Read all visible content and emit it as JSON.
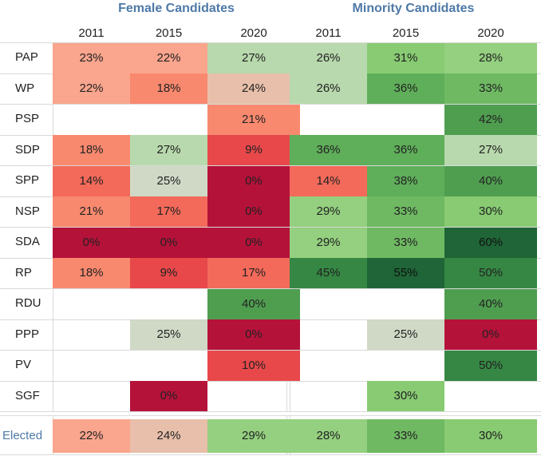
{
  "chart_data": {
    "type": "heatmap",
    "panels": [
      {
        "title": "Female Candidates",
        "years": [
          "2011",
          "2015",
          "2020"
        ],
        "rows": [
          {
            "party": "PAP",
            "values": [
              23,
              22,
              27
            ]
          },
          {
            "party": "WP",
            "values": [
              22,
              18,
              24
            ]
          },
          {
            "party": "PSP",
            "values": [
              null,
              null,
              21
            ]
          },
          {
            "party": "SDP",
            "values": [
              18,
              27,
              9
            ]
          },
          {
            "party": "SPP",
            "values": [
              14,
              25,
              0
            ]
          },
          {
            "party": "NSP",
            "values": [
              21,
              17,
              0
            ]
          },
          {
            "party": "SDA",
            "values": [
              0,
              0,
              0
            ]
          },
          {
            "party": "RP",
            "values": [
              18,
              9,
              17
            ]
          },
          {
            "party": "RDU",
            "values": [
              null,
              null,
              40
            ]
          },
          {
            "party": "PPP",
            "values": [
              null,
              25,
              0
            ]
          },
          {
            "party": "PV",
            "values": [
              null,
              null,
              10
            ]
          },
          {
            "party": "SGF",
            "values": [
              null,
              0,
              null
            ]
          }
        ],
        "elected": {
          "label": "Elected",
          "values": [
            22,
            24,
            29
          ]
        }
      },
      {
        "title": "Minority Candidates",
        "years": [
          "2011",
          "2015",
          "2020"
        ],
        "rows": [
          {
            "party": "PAP",
            "values": [
              26,
              31,
              28
            ]
          },
          {
            "party": "WP",
            "values": [
              26,
              36,
              33
            ]
          },
          {
            "party": "PSP",
            "values": [
              null,
              null,
              42
            ]
          },
          {
            "party": "SDP",
            "values": [
              36,
              36,
              27
            ]
          },
          {
            "party": "SPP",
            "values": [
              14,
              38,
              40
            ]
          },
          {
            "party": "NSP",
            "values": [
              29,
              33,
              30
            ]
          },
          {
            "party": "SDA",
            "values": [
              29,
              33,
              60
            ]
          },
          {
            "party": "RP",
            "values": [
              45,
              55,
              50
            ]
          },
          {
            "party": "RDU",
            "values": [
              null,
              null,
              40
            ]
          },
          {
            "party": "PPP",
            "values": [
              null,
              25,
              0
            ]
          },
          {
            "party": "PV",
            "values": [
              null,
              null,
              50
            ]
          },
          {
            "party": "SGF",
            "values": [
              null,
              30,
              null
            ]
          }
        ],
        "elected": {
          "label": "Elected",
          "values": [
            28,
            33,
            30
          ]
        }
      }
    ],
    "value_format": "percent",
    "colors": {
      "scale": [
        {
          "v": 0,
          "c": "#b5123a"
        },
        {
          "v": 9,
          "c": "#e8484a"
        },
        {
          "v": 14,
          "c": "#f36a5a"
        },
        {
          "v": 18,
          "c": "#f8896f"
        },
        {
          "v": 22,
          "c": "#faa58d"
        },
        {
          "v": 24,
          "c": "#e8bfaa"
        },
        {
          "v": 25,
          "c": "#cfd9c6"
        },
        {
          "v": 26,
          "c": "#b8d9ad"
        },
        {
          "v": 28,
          "c": "#94d07f"
        },
        {
          "v": 30,
          "c": "#88cb73"
        },
        {
          "v": 33,
          "c": "#6fb963"
        },
        {
          "v": 36,
          "c": "#5fae5a"
        },
        {
          "v": 40,
          "c": "#4f9e50"
        },
        {
          "v": 45,
          "c": "#358743"
        },
        {
          "v": 55,
          "c": "#1f6537"
        }
      ]
    }
  }
}
